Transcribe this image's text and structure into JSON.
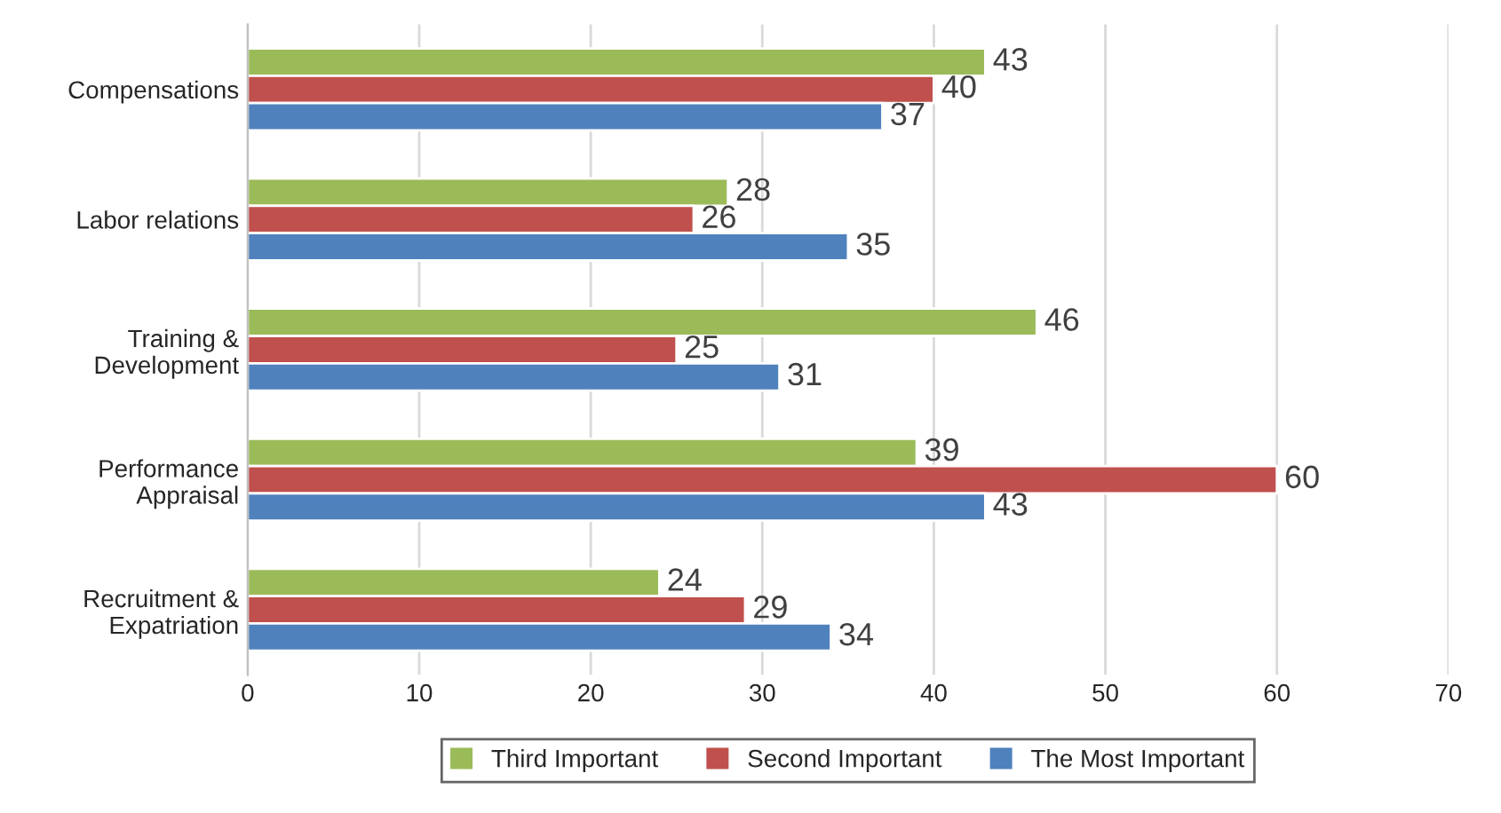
{
  "chart_data": {
    "type": "bar",
    "orientation": "horizontal",
    "categories": [
      "Compensations",
      "Labor relations",
      "Training &\nDevelopment",
      "Performance\nAppraisal",
      "Recruitment &\nExpatriation"
    ],
    "series": [
      {
        "name": "Third Important",
        "color": "#9bbb59",
        "values": [
          43,
          28,
          46,
          39,
          24
        ]
      },
      {
        "name": "Second Important",
        "color": "#c0504d",
        "values": [
          40,
          26,
          25,
          60,
          29
        ]
      },
      {
        "name": "The Most Important",
        "color": "#4f81bd",
        "values": [
          37,
          35,
          31,
          43,
          34
        ]
      }
    ],
    "xlim": [
      0,
      70
    ],
    "xticks": [
      0,
      10,
      20,
      30,
      40,
      50,
      60,
      70
    ],
    "grid": "x",
    "legend": "bottom",
    "data_labels": true
  }
}
